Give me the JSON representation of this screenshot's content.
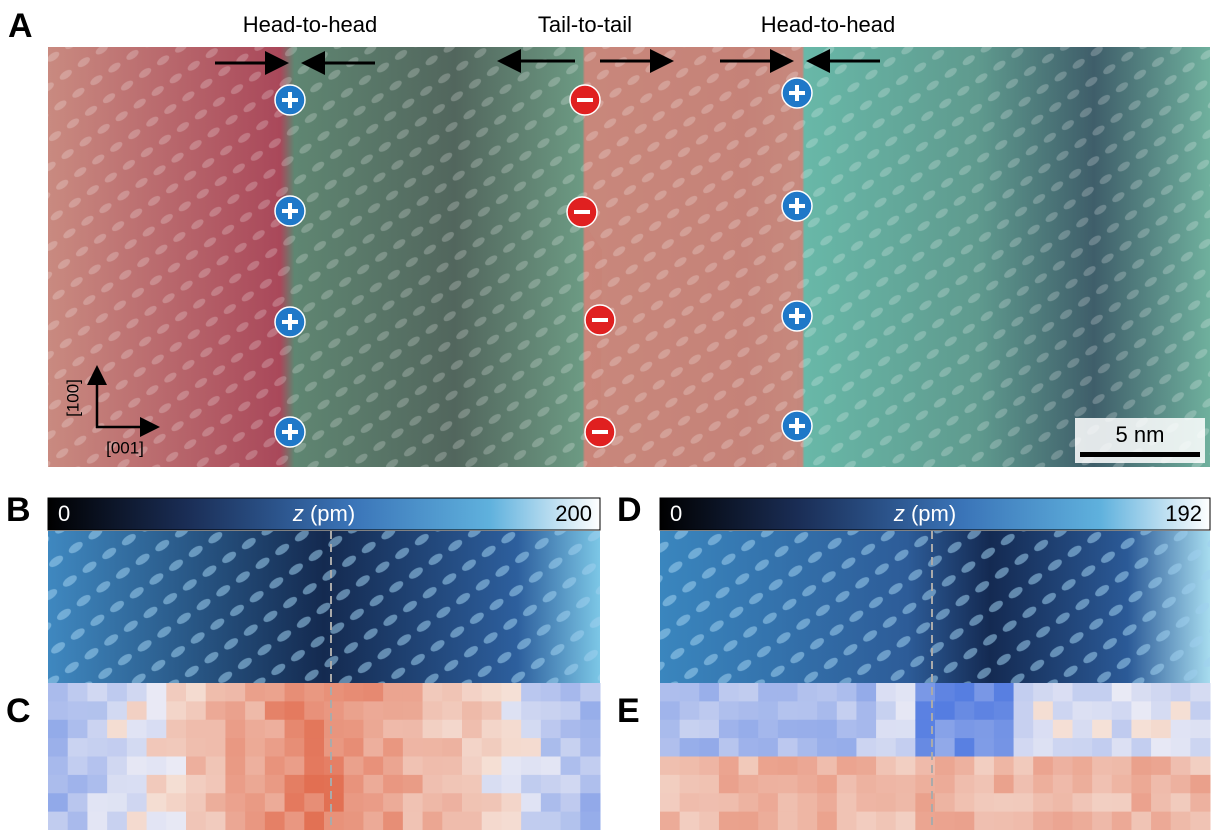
{
  "panels": {
    "A": {
      "label": "A",
      "annotations": [
        "Head-to-head",
        "Tail-to-tail",
        "Head-to-head"
      ],
      "axes": {
        "vertical": "[100]",
        "horizontal": "[001]"
      },
      "scale_bar": "5 nm"
    },
    "B": {
      "label": "B",
      "colorbar": {
        "min": 0,
        "max": 200,
        "symbol": "z",
        "unit": "(pm)"
      }
    },
    "C": {
      "label": "C"
    },
    "D": {
      "label": "D",
      "colorbar": {
        "min": 0,
        "max": 192,
        "symbol": "z",
        "unit": "(pm)"
      }
    },
    "E": {
      "label": "E"
    }
  }
}
